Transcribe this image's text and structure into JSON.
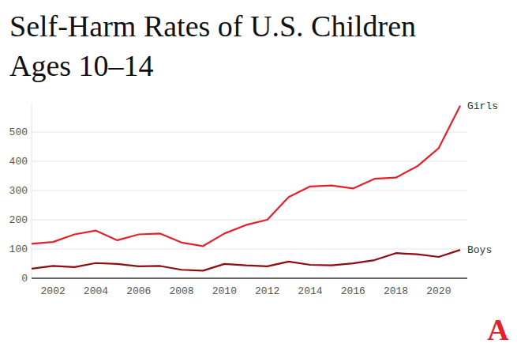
{
  "chart_data": {
    "type": "line",
    "title": "Self-Harm Rates of U.S. Children Ages 10–14",
    "x": [
      2001,
      2002,
      2003,
      2004,
      2005,
      2006,
      2007,
      2008,
      2009,
      2010,
      2011,
      2012,
      2013,
      2014,
      2015,
      2016,
      2017,
      2018,
      2019,
      2020,
      2021
    ],
    "series": [
      {
        "name": "Girls",
        "color": "#e3202b",
        "values": [
          118,
          124,
          150,
          163,
          130,
          150,
          153,
          122,
          110,
          153,
          182,
          200,
          278,
          314,
          317,
          307,
          340,
          344,
          383,
          445,
          590
        ]
      },
      {
        "name": "Boys",
        "color": "#8e0b0f",
        "values": [
          33,
          42,
          38,
          52,
          49,
          41,
          42,
          29,
          26,
          49,
          44,
          41,
          57,
          46,
          44,
          51,
          62,
          86,
          82,
          73,
          97
        ]
      }
    ],
    "xlim": [
      2001,
      2021
    ],
    "xticks": [
      2002,
      2004,
      2006,
      2008,
      2010,
      2012,
      2014,
      2016,
      2018,
      2020
    ],
    "ylim": [
      0,
      600
    ],
    "yticks": [
      0,
      100,
      200,
      300,
      400,
      500
    ],
    "grid": true,
    "annotations": [
      "A"
    ]
  }
}
